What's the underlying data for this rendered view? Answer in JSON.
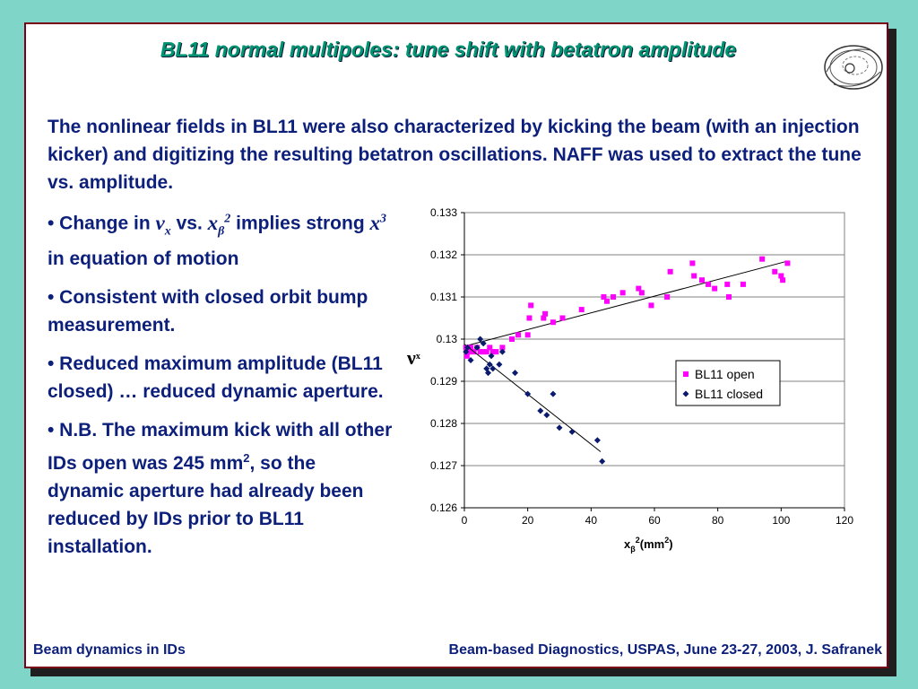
{
  "slide": {
    "title": "BL11 normal multipoles: tune shift with betatron amplitude",
    "intro": "The nonlinear fields in BL11 were also characterized by kicking the beam (with an injection kicker) and digitizing the resulting betatron oscillations. NAFF was used to extract the tune vs. amplitude.",
    "bullets": {
      "b1": {
        "prefix": "• Change in ",
        "nu": "ν",
        "nu_sub": "x",
        "mid": " vs. ",
        "xb": "x",
        "xb_sub": "β",
        "xb_sup": "2",
        "suffix": " implies strong ",
        "x3": "x",
        "x3_sup": "3",
        "end": " in equation of motion"
      },
      "b2": "• Consistent with closed orbit bump measurement.",
      "b3": "• Reduced maximum amplitude (BL11 closed) … reduced dynamic aperture.",
      "b4": {
        "pre": "• N.B.  The maximum kick with all other IDs open was 245 mm",
        "sup": "2",
        "post": ", so the dynamic aperture had already been reduced by IDs prior to BL11 installation."
      }
    },
    "footer_left": "Beam dynamics in IDs",
    "footer_right": "Beam-based Diagnostics, USPAS, June 23-27, 2003, J. Safranek"
  },
  "colors": {
    "title": "#009470",
    "text": "#0c1f7a",
    "border": "#7a0018",
    "background": "#7fd6c8",
    "open_series": "#ff00ff",
    "closed_series": "#0a1a6e"
  },
  "chart_data": {
    "type": "scatter",
    "title": "",
    "xlabel": "xβ²(mm²)",
    "xlabel_parts": {
      "x": "x",
      "sub": "β",
      "sup": "2",
      "rest": "(mm",
      "sup2": "2",
      "close": ")"
    },
    "ylabel": "νx",
    "ylabel_parts": {
      "main": "ν",
      "sub": "x"
    },
    "xlim": [
      0,
      120
    ],
    "ylim": [
      0.126,
      0.133
    ],
    "xticks": [
      "0",
      "20",
      "40",
      "60",
      "80",
      "100",
      "120"
    ],
    "yticks": [
      "0.126",
      "0.127",
      "0.128",
      "0.129",
      "0.13",
      "0.131",
      "0.132",
      "0.133"
    ],
    "grid": "horizontal",
    "legend": "right",
    "series": [
      {
        "name": "BL11 open",
        "marker": "square",
        "color": "#ff00ff",
        "points": [
          [
            0.5,
            0.1298
          ],
          [
            0.8,
            0.1296
          ],
          [
            1.5,
            0.1297
          ],
          [
            2,
            0.1298
          ],
          [
            3,
            0.1297
          ],
          [
            4,
            0.1298
          ],
          [
            5,
            0.1297
          ],
          [
            6,
            0.1297
          ],
          [
            7,
            0.1297
          ],
          [
            8,
            0.1298
          ],
          [
            9,
            0.1297
          ],
          [
            10,
            0.1297
          ],
          [
            12,
            0.1298
          ],
          [
            15,
            0.13
          ],
          [
            17,
            0.1301
          ],
          [
            20,
            0.1301
          ],
          [
            20.5,
            0.1305
          ],
          [
            21,
            0.1308
          ],
          [
            25,
            0.1305
          ],
          [
            25.5,
            0.1306
          ],
          [
            28,
            0.1304
          ],
          [
            31,
            0.1305
          ],
          [
            37,
            0.1307
          ],
          [
            44,
            0.131
          ],
          [
            45,
            0.1309
          ],
          [
            47,
            0.131
          ],
          [
            50,
            0.1311
          ],
          [
            55,
            0.1312
          ],
          [
            56,
            0.1311
          ],
          [
            59,
            0.1308
          ],
          [
            64,
            0.131
          ],
          [
            65,
            0.1316
          ],
          [
            72,
            0.1318
          ],
          [
            72.5,
            0.1315
          ],
          [
            75,
            0.1314
          ],
          [
            77,
            0.1313
          ],
          [
            79,
            0.1312
          ],
          [
            83,
            0.1313
          ],
          [
            83.5,
            0.131
          ],
          [
            88,
            0.1313
          ],
          [
            94,
            0.1319
          ],
          [
            98,
            0.1316
          ],
          [
            100,
            0.1315
          ],
          [
            100.5,
            0.1314
          ],
          [
            102,
            0.1318
          ]
        ],
        "fit": [
          [
            0,
            0.12983
          ],
          [
            102,
            0.13185
          ]
        ]
      },
      {
        "name": "BL11 closed",
        "marker": "diamond",
        "color": "#0a1a6e",
        "points": [
          [
            0.5,
            0.1297
          ],
          [
            1,
            0.1298
          ],
          [
            2,
            0.1295
          ],
          [
            4,
            0.1298
          ],
          [
            5,
            0.13
          ],
          [
            6,
            0.1299
          ],
          [
            7,
            0.1293
          ],
          [
            7.5,
            0.1292
          ],
          [
            8,
            0.1294
          ],
          [
            8.5,
            0.1296
          ],
          [
            9,
            0.1293
          ],
          [
            11,
            0.1294
          ],
          [
            12,
            0.1297
          ],
          [
            16,
            0.1292
          ],
          [
            20,
            0.1287
          ],
          [
            24,
            0.1283
          ],
          [
            26,
            0.1282
          ],
          [
            28,
            0.1287
          ],
          [
            30,
            0.1279
          ],
          [
            34,
            0.1278
          ],
          [
            42,
            0.1276
          ],
          [
            43.5,
            0.1271
          ]
        ],
        "fit": [
          [
            0,
            0.12988
          ],
          [
            43,
            0.12733
          ]
        ]
      }
    ]
  }
}
